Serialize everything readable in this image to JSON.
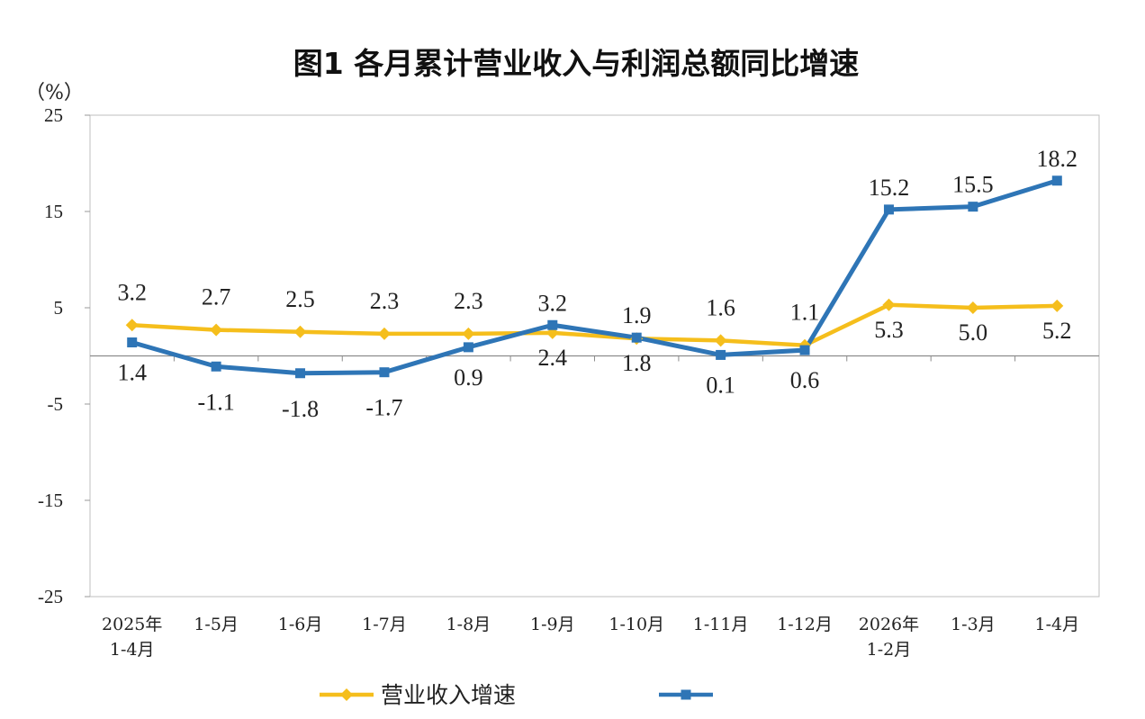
{
  "chart_data": {
    "type": "line",
    "title": "图1  各月累计营业收入与利润总额同比增速",
    "ylabel": "（%）",
    "ylim": [
      -25,
      25
    ],
    "yticks": [
      25,
      15,
      5,
      -5,
      -15,
      -25
    ],
    "categories": [
      [
        "2025年",
        "1-4月"
      ],
      [
        "1-5月"
      ],
      [
        "1-6月"
      ],
      [
        "1-7月"
      ],
      [
        "1-8月"
      ],
      [
        "1-9月"
      ],
      [
        "1-10月"
      ],
      [
        "1-11月"
      ],
      [
        "1-12月"
      ],
      [
        "2026年",
        "1-2月"
      ],
      [
        "1-3月"
      ],
      [
        "1-4月"
      ]
    ],
    "series": [
      {
        "name": "营业收入增速",
        "color": "#F5BE1C",
        "marker": "diamond",
        "values": [
          3.2,
          2.7,
          2.5,
          2.3,
          2.3,
          2.4,
          1.8,
          1.6,
          1.1,
          5.3,
          5.0,
          5.2
        ],
        "labels": [
          "3.2",
          "2.7",
          "2.5",
          "2.3",
          "2.3",
          "2.4",
          "1.8",
          "1.6",
          "1.1",
          "5.3",
          "5.0",
          "5.2"
        ]
      },
      {
        "name": "",
        "color": "#2E75B6",
        "marker": "square",
        "values": [
          1.4,
          -1.1,
          -1.8,
          -1.7,
          0.9,
          3.2,
          1.9,
          0.1,
          0.6,
          15.2,
          15.5,
          18.2
        ],
        "labels": [
          "1.4",
          "-1.1",
          "-1.8",
          "-1.7",
          "0.9",
          "3.2",
          "1.9",
          "0.1",
          "0.6",
          "15.2",
          "15.5",
          "18.2"
        ]
      }
    ],
    "grid": false,
    "legend": "bottom"
  }
}
